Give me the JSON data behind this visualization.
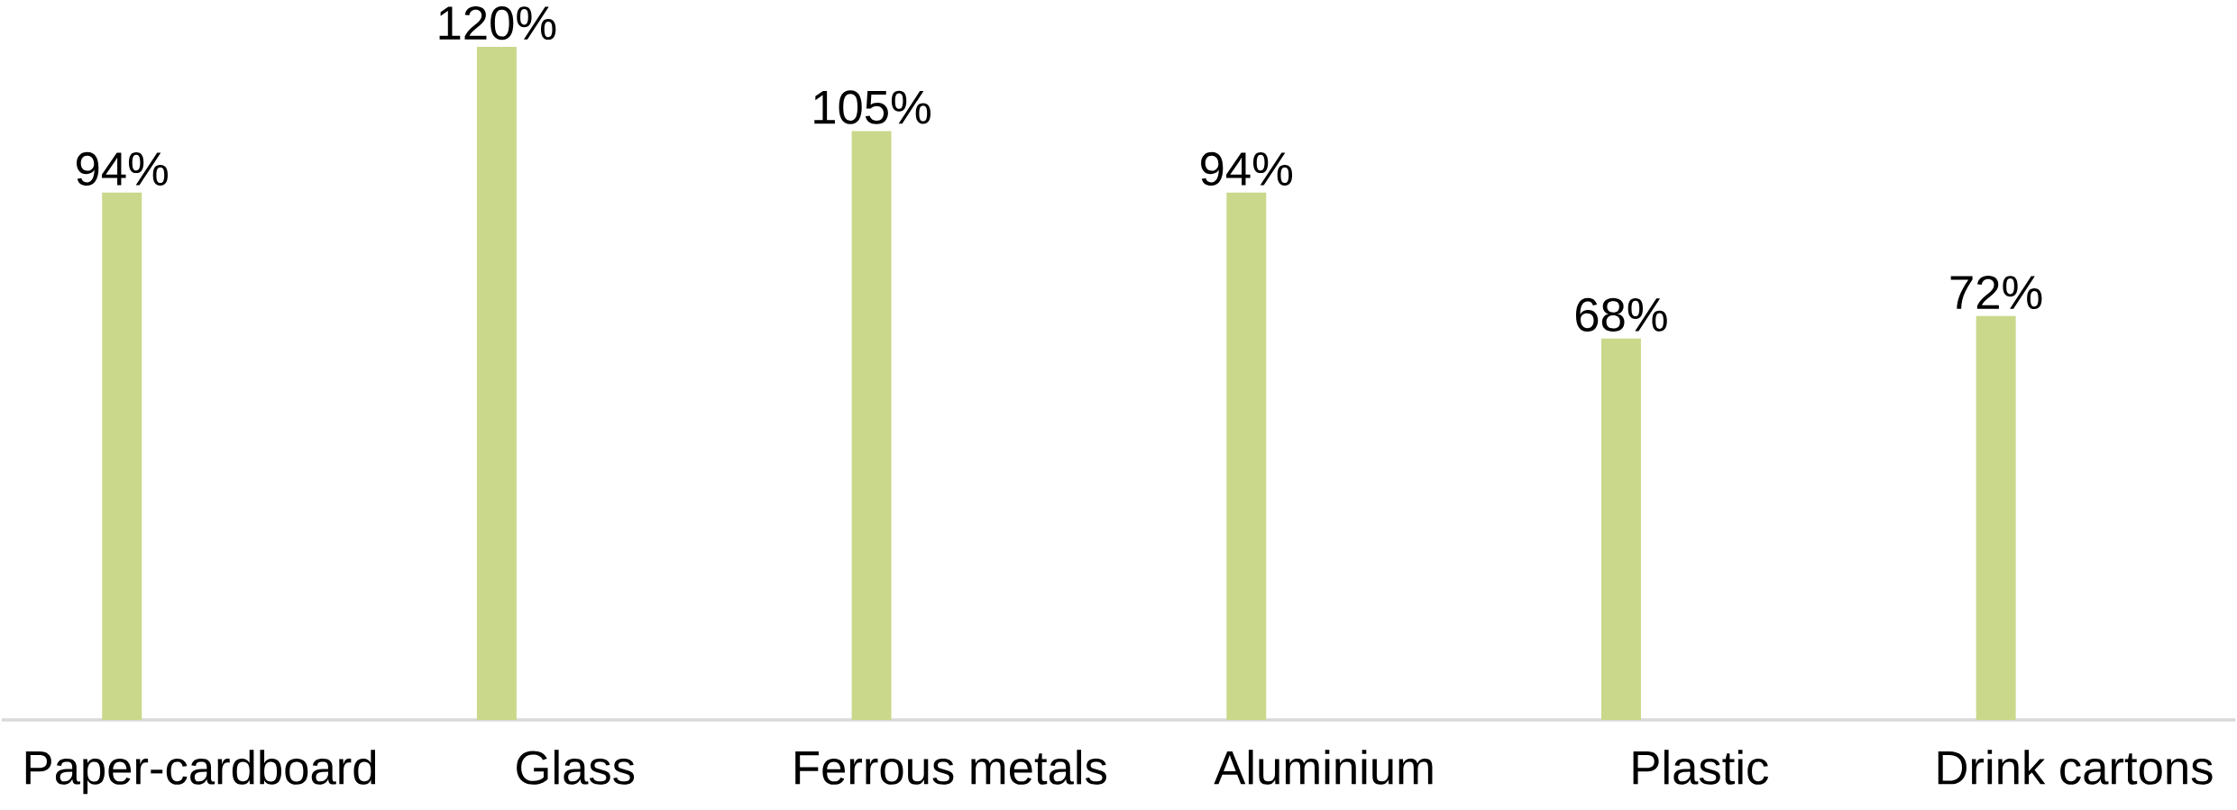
{
  "chart_data": {
    "type": "bar",
    "categories": [
      "Paper-cardboard",
      "Glass",
      "Ferrous metals",
      "Aluminium",
      "Plastic",
      "Drink cartons"
    ],
    "values": [
      94,
      120,
      105,
      94,
      68,
      72
    ],
    "value_labels": [
      "94%",
      "120%",
      "105%",
      "94%",
      "68%",
      "72%"
    ],
    "color": "#c9d88a",
    "tick_labels": "x"
  }
}
